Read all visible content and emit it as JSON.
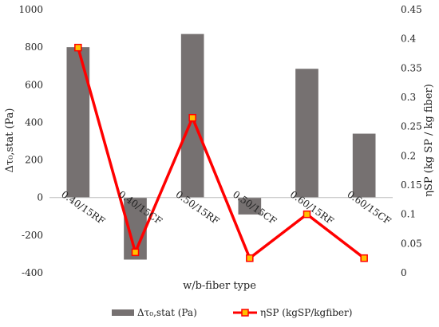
{
  "chart_data": {
    "type": "bar",
    "categories": [
      "0.40/15RF",
      "0.40/15CF",
      "0.50/15RF",
      "0.50/15CF",
      "0.60/15RF",
      "0.60/15CF"
    ],
    "series": [
      {
        "name": "Δτ₀,stat (Pa)",
        "type": "bar",
        "axis": "left",
        "color": "#767171",
        "values": [
          800,
          -330,
          870,
          -90,
          685,
          340
        ]
      },
      {
        "name": "ηSP (kgSP/kgfiber)",
        "type": "line",
        "axis": "right",
        "color": "#FF0000",
        "marker_color": "#FFC000",
        "values": [
          0.385,
          0.035,
          0.265,
          0.025,
          0.1,
          0.025
        ]
      }
    ],
    "xlabel": "w/b-fiber type",
    "ylabel": "Δτ₀,stat (Pa)",
    "y2label": "ηSP (kg SP / kg fiber)",
    "ylim": [
      -400,
      1000
    ],
    "y2lim": [
      0,
      0.45
    ],
    "yticks": [
      -400,
      -200,
      0,
      200,
      400,
      600,
      800,
      1000
    ],
    "y2ticks": [
      0,
      0.05,
      0.1,
      0.15,
      0.2,
      0.25,
      0.3,
      0.35,
      0.4,
      0.45
    ],
    "y2tick_labels": [
      "0",
      "0.05",
      "0.1",
      "0.15",
      "0.2",
      "0.25",
      "0.3",
      "0.35",
      "0.4",
      "0.45"
    ],
    "grid": false,
    "legend_position": "bottom"
  }
}
